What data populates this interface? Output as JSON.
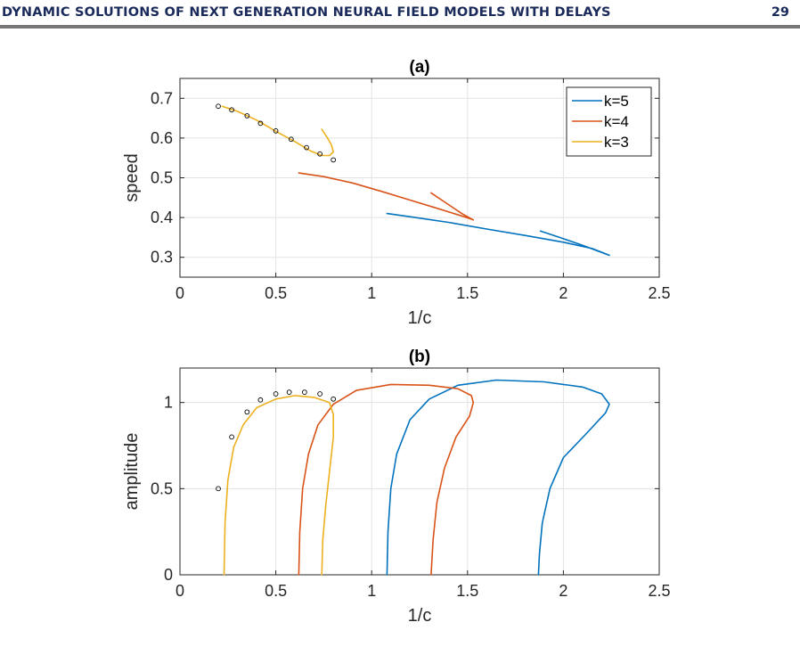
{
  "header": {
    "running_title": "DYNAMIC SOLUTIONS OF NEXT GENERATION NEURAL FIELD MODELS WITH DELAYS",
    "page_number": "29"
  },
  "colors": {
    "k5": "#0072BD",
    "k4": "#D95319",
    "k3": "#EDB120"
  },
  "chart_data": [
    {
      "type": "line",
      "title": "(a)",
      "xlabel": "1/c",
      "ylabel": "speed",
      "xlim": [
        0,
        2.5
      ],
      "ylim": [
        0.25,
        0.75
      ],
      "xticks": [
        0,
        0.5,
        1,
        1.5,
        2,
        2.5
      ],
      "xtick_labels": [
        "0",
        "0.5",
        "1",
        "1.5",
        "2",
        "2.5"
      ],
      "yticks": [
        0.3,
        0.4,
        0.5,
        0.6,
        0.7
      ],
      "ytick_labels": [
        "0.3",
        "0.4",
        "0.5",
        "0.6",
        "0.7"
      ],
      "grid": true,
      "legend_position": "top-right",
      "series": [
        {
          "name": "k=5",
          "color": "#0072BD",
          "points": [
            [
              1.08,
              0.41
            ],
            [
              1.2,
              0.402
            ],
            [
              1.4,
              0.388
            ],
            [
              1.6,
              0.371
            ],
            [
              1.8,
              0.355
            ],
            [
              2.0,
              0.338
            ],
            [
              2.15,
              0.322
            ],
            [
              2.22,
              0.309
            ],
            [
              2.24,
              0.305
            ],
            [
              2.1,
              0.33
            ],
            [
              1.98,
              0.35
            ],
            [
              1.88,
              0.366
            ]
          ]
        },
        {
          "name": "k=4",
          "color": "#D95319",
          "points": [
            [
              0.62,
              0.512
            ],
            [
              0.75,
              0.503
            ],
            [
              0.9,
              0.487
            ],
            [
              1.05,
              0.466
            ],
            [
              1.2,
              0.444
            ],
            [
              1.35,
              0.422
            ],
            [
              1.47,
              0.404
            ],
            [
              1.52,
              0.396
            ],
            [
              1.53,
              0.394
            ],
            [
              1.47,
              0.41
            ],
            [
              1.39,
              0.436
            ],
            [
              1.31,
              0.462
            ]
          ]
        },
        {
          "name": "k=3",
          "color": "#EDB120",
          "points": [
            [
              0.22,
              0.68
            ],
            [
              0.3,
              0.667
            ],
            [
              0.4,
              0.645
            ],
            [
              0.5,
              0.617
            ],
            [
              0.6,
              0.591
            ],
            [
              0.68,
              0.568
            ],
            [
              0.74,
              0.556
            ],
            [
              0.78,
              0.556
            ],
            [
              0.8,
              0.565
            ],
            [
              0.79,
              0.583
            ],
            [
              0.77,
              0.6
            ],
            [
              0.74,
              0.622
            ]
          ]
        }
      ],
      "markers": {
        "name": "",
        "x": [
          0.2,
          0.27,
          0.35,
          0.42,
          0.5,
          0.58,
          0.66,
          0.73,
          0.8
        ],
        "y": [
          0.68,
          0.671,
          0.656,
          0.637,
          0.618,
          0.597,
          0.576,
          0.56,
          0.545
        ]
      }
    },
    {
      "type": "line",
      "title": "(b)",
      "xlabel": "1/c",
      "ylabel": "amplitude",
      "xlim": [
        0,
        2.5
      ],
      "ylim": [
        0,
        1.2
      ],
      "xticks": [
        0,
        0.5,
        1,
        1.5,
        2,
        2.5
      ],
      "xtick_labels": [
        "0",
        "0.5",
        "1",
        "1.5",
        "2",
        "2.5"
      ],
      "yticks": [
        0,
        0.5,
        1
      ],
      "ytick_labels": [
        "0",
        "0.5",
        "1"
      ],
      "grid": true,
      "series": [
        {
          "name": "k=5",
          "color": "#0072BD",
          "points": [
            [
              1.08,
              0
            ],
            [
              1.085,
              0.25
            ],
            [
              1.1,
              0.5
            ],
            [
              1.13,
              0.7
            ],
            [
              1.2,
              0.9
            ],
            [
              1.3,
              1.02
            ],
            [
              1.45,
              1.1
            ],
            [
              1.65,
              1.13
            ],
            [
              1.9,
              1.12
            ],
            [
              2.1,
              1.09
            ],
            [
              2.2,
              1.05
            ],
            [
              2.24,
              0.99
            ],
            [
              2.22,
              0.94
            ],
            [
              2.12,
              0.82
            ],
            [
              2.0,
              0.68
            ],
            [
              1.93,
              0.5
            ],
            [
              1.89,
              0.3
            ],
            [
              1.875,
              0.12
            ],
            [
              1.87,
              0
            ]
          ]
        },
        {
          "name": "k=4",
          "color": "#D95319",
          "points": [
            [
              0.62,
              0
            ],
            [
              0.625,
              0.25
            ],
            [
              0.64,
              0.5
            ],
            [
              0.67,
              0.7
            ],
            [
              0.72,
              0.87
            ],
            [
              0.8,
              0.99
            ],
            [
              0.92,
              1.07
            ],
            [
              1.1,
              1.105
            ],
            [
              1.3,
              1.1
            ],
            [
              1.45,
              1.08
            ],
            [
              1.52,
              1.04
            ],
            [
              1.53,
              1.0
            ],
            [
              1.51,
              0.92
            ],
            [
              1.44,
              0.8
            ],
            [
              1.38,
              0.62
            ],
            [
              1.34,
              0.42
            ],
            [
              1.32,
              0.2
            ],
            [
              1.31,
              0
            ]
          ]
        },
        {
          "name": "k=3",
          "color": "#EDB120",
          "points": [
            [
              0.23,
              0
            ],
            [
              0.235,
              0.3
            ],
            [
              0.25,
              0.55
            ],
            [
              0.28,
              0.74
            ],
            [
              0.33,
              0.87
            ],
            [
              0.4,
              0.97
            ],
            [
              0.5,
              1.02
            ],
            [
              0.6,
              1.04
            ],
            [
              0.7,
              1.03
            ],
            [
              0.78,
              1.0
            ],
            [
              0.8,
              0.93
            ],
            [
              0.8,
              0.8
            ],
            [
              0.78,
              0.6
            ],
            [
              0.76,
              0.4
            ],
            [
              0.745,
              0.2
            ],
            [
              0.74,
              0
            ]
          ]
        }
      ],
      "markers": {
        "name": "",
        "x": [
          0.2,
          0.27,
          0.35,
          0.42,
          0.5,
          0.57,
          0.65,
          0.73,
          0.8
        ],
        "y": [
          0.5,
          0.8,
          0.945,
          1.015,
          1.05,
          1.06,
          1.06,
          1.05,
          1.02
        ]
      }
    }
  ]
}
